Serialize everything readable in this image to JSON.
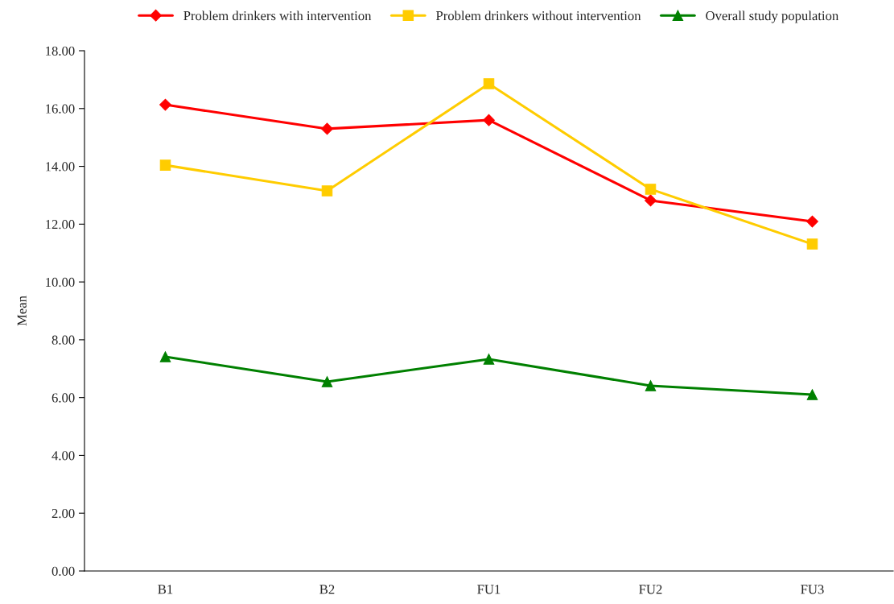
{
  "chart_data": {
    "type": "line",
    "ylabel": "Mean",
    "categories": [
      "B1",
      "B2",
      "FU1",
      "FU2",
      "FU3"
    ],
    "series": [
      {
        "name": "Problem drinkers with intervention",
        "color": "#ff0000",
        "marker": "diamond",
        "values": [
          16.13,
          15.3,
          15.6,
          12.82,
          12.09
        ]
      },
      {
        "name": "Problem drinkers without intervention",
        "color": "#ffcc00",
        "marker": "square",
        "values": [
          14.04,
          13.15,
          16.86,
          13.21,
          11.31
        ]
      },
      {
        "name": "Overall study population",
        "color": "#008000",
        "marker": "triangle",
        "values": [
          7.41,
          6.55,
          7.33,
          6.41,
          6.1
        ]
      }
    ],
    "ylim": [
      0,
      18
    ],
    "yticks": [
      {
        "value": 0,
        "label": "0.00"
      },
      {
        "value": 2,
        "label": "2.00"
      },
      {
        "value": 4,
        "label": "4.00"
      },
      {
        "value": 6,
        "label": "6.00"
      },
      {
        "value": 8,
        "label": "8.00"
      },
      {
        "value": 10,
        "label": "10.00"
      },
      {
        "value": 12,
        "label": "12.00"
      },
      {
        "value": 14,
        "label": "14.00"
      },
      {
        "value": 16,
        "label": "16.00"
      },
      {
        "value": 18,
        "label": "18.00"
      }
    ],
    "grid": false,
    "legend": "top",
    "line_style": "solid"
  }
}
